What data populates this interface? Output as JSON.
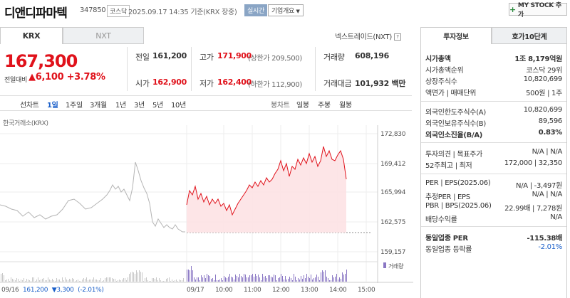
{
  "header": {
    "name": "디앤디파마텍",
    "code": "347850",
    "market": "코스닥",
    "datetime": "2025.09.17 14:35 기준(KRX 장중)",
    "realtime": "실시간",
    "company_info": "기업개요",
    "my_stock": "MY STOCK 추가"
  },
  "tabs": {
    "krx": "KRX",
    "nxt": "NXT",
    "nextrade": "넥스트레이드(NXT)"
  },
  "quote": {
    "price": "167,300",
    "prev_label": "전일대비",
    "change": "▲6,100",
    "change_pct": "+3.78%",
    "prev_close_label": "전일",
    "prev_close": "161,200",
    "high_label": "고가",
    "high": "171,900",
    "upper_limit": "(상한가 209,500)",
    "volume_label": "거래량",
    "volume": "608,196",
    "open_label": "시가",
    "open": "162,900",
    "low_label": "저가",
    "low": "162,400",
    "lower_limit": "(하한가 112,900)",
    "amount_label": "거래대금",
    "amount": "101,932 백만"
  },
  "toolbar": {
    "line_label": "선차트",
    "periods": [
      "1일",
      "1주일",
      "3개월",
      "1년",
      "3년",
      "5년",
      "10년"
    ],
    "candle_label": "봉차트",
    "candles": [
      "일봉",
      "주봉",
      "월봉"
    ]
  },
  "chart_source": "한국거래소(KRX)",
  "chart_data": {
    "type": "line",
    "yticks": [
      "172,830",
      "169,412",
      "165,994",
      "162,575",
      "159,157"
    ],
    "xticks": [
      "09/17",
      "10:00",
      "11:00",
      "12:00",
      "13:00",
      "14:00",
      "15:00"
    ],
    "ylim": [
      159157,
      172830
    ],
    "prev_close": 161200,
    "volume_label": "거래량",
    "prev_day": {
      "date": "09/16",
      "close": "161,200",
      "change": "▼3,300",
      "pct": "(-2.01%)"
    }
  },
  "right": {
    "tab1": "투자정보",
    "tab2": "호가10단계",
    "rows": [
      {
        "k": "시가총액",
        "v": "1조 8,179억원",
        "bold": true
      },
      {
        "k": "시가총액순위",
        "v": "코스닥 29위"
      },
      {
        "k": "상장주식수",
        "v": "10,820,699"
      },
      {
        "k": "액면가 | 매매단위",
        "v": "500원 | 1주"
      },
      {
        "k": "외국인한도주식수(A)",
        "v": "10,820,699"
      },
      {
        "k": "외국인보유주식수(B)",
        "v": "89,596"
      },
      {
        "k": "외국인소진율(B/A)",
        "v": "0.83%",
        "bold": true
      },
      {
        "k": "투자의견 | 목표주가",
        "v": "N/A | N/A"
      },
      {
        "k": "52주최고 | 최저",
        "v": "172,000 | 32,350"
      },
      {
        "k": "PER | EPS(2025.06)",
        "v": "N/A | -3,497원"
      },
      {
        "k": "추정PER | EPS",
        "v": "N/A | N/A"
      },
      {
        "k": "PBR | BPS(2025.06)",
        "v": "22.99배 | 7,278원"
      },
      {
        "k": "배당수익률",
        "v": "N/A"
      },
      {
        "k": "동일업종 PER",
        "v": "-115.38배",
        "bold": true
      },
      {
        "k": "동일업종 등락률",
        "v": "-2.01%",
        "blue": true
      }
    ]
  },
  "colors": {
    "up": "#e0121b",
    "down": "#1a5fc9",
    "prev_line": "#aaaaaa",
    "fill": "#fde2e4"
  }
}
